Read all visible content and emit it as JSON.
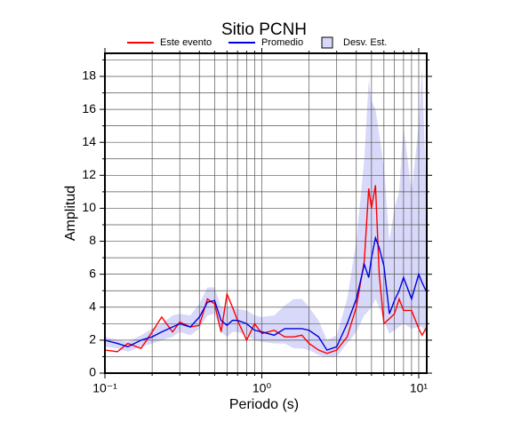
{
  "chart_data": {
    "type": "line",
    "title": "Sitio PCNH",
    "xlabel": "Periodo (s)",
    "ylabel": "Amplitud",
    "xscale": "log",
    "grid": true,
    "xlim": [
      0.1,
      11.25
    ],
    "ylim": [
      0,
      19.4
    ],
    "xticks": [
      {
        "value": 0.1,
        "label": "10⁻¹"
      },
      {
        "value": 1,
        "label": "10⁰"
      },
      {
        "value": 10,
        "label": "10¹"
      }
    ],
    "xminorticks": [
      0.2,
      0.3,
      0.4,
      0.5,
      0.6,
      0.7,
      0.8,
      0.9,
      2,
      3,
      4,
      5,
      6,
      7,
      8,
      9
    ],
    "yticks": [
      0,
      2,
      4,
      6,
      8,
      10,
      12,
      14,
      16,
      18
    ],
    "yminorticks": [
      1,
      3,
      5,
      7,
      9,
      11,
      13,
      15,
      17,
      19
    ],
    "x": [
      0.1,
      0.12,
      0.14,
      0.17,
      0.2,
      0.23,
      0.27,
      0.3,
      0.35,
      0.4,
      0.45,
      0.5,
      0.55,
      0.6,
      0.65,
      0.7,
      0.8,
      0.9,
      1.0,
      1.2,
      1.4,
      1.6,
      1.8,
      2.0,
      2.3,
      2.6,
      3.0,
      3.5,
      4.0,
      4.5,
      4.8,
      5.0,
      5.3,
      5.6,
      6.0,
      6.5,
      7.0,
      7.5,
      8.0,
      9.0,
      10.0,
      10.5,
      11.25
    ],
    "series": [
      {
        "name": "Este evento",
        "color": "#ff0000",
        "values": [
          1.4,
          1.3,
          1.8,
          1.5,
          2.5,
          3.4,
          2.5,
          3.1,
          2.8,
          2.9,
          4.5,
          4.2,
          2.5,
          4.8,
          4.0,
          3.2,
          2.0,
          3.0,
          2.4,
          2.6,
          2.2,
          2.2,
          2.3,
          1.8,
          1.4,
          1.2,
          1.4,
          2.2,
          4.0,
          6.8,
          11.2,
          10.0,
          11.4,
          6.0,
          3.0,
          3.3,
          3.6,
          4.5,
          3.8,
          3.8,
          2.7,
          2.3,
          2.8
        ]
      },
      {
        "name": "Promedio",
        "color": "#0000dd",
        "values": [
          2.0,
          1.8,
          1.6,
          2.0,
          2.2,
          2.5,
          2.8,
          3.0,
          2.8,
          3.4,
          4.3,
          4.4,
          3.2,
          2.9,
          3.2,
          3.2,
          3.0,
          2.6,
          2.5,
          2.3,
          2.7,
          2.7,
          2.7,
          2.6,
          2.2,
          1.4,
          1.6,
          3.0,
          4.5,
          6.6,
          5.8,
          7.0,
          8.2,
          7.6,
          6.5,
          3.6,
          4.4,
          5.0,
          5.8,
          4.5,
          6.0,
          5.5,
          4.9
        ]
      },
      {
        "name": "Desv. Est.",
        "color": "#d8d8fa",
        "band": true,
        "upper": [
          2.2,
          2.0,
          1.9,
          2.3,
          2.7,
          3.0,
          3.5,
          3.6,
          3.5,
          4.2,
          5.2,
          5.2,
          4.0,
          4.0,
          4.0,
          3.9,
          3.8,
          3.5,
          3.4,
          3.5,
          4.1,
          4.5,
          4.5,
          4.0,
          3.2,
          2.0,
          2.3,
          4.5,
          8.0,
          13.0,
          17.8,
          16.5,
          16.0,
          14.5,
          12.5,
          8.0,
          10.0,
          11.0,
          15.0,
          11.0,
          15.0,
          18.5,
          10.0
        ],
        "lower": [
          1.6,
          1.5,
          1.3,
          1.6,
          1.8,
          2.0,
          2.2,
          2.5,
          2.3,
          2.7,
          3.5,
          3.6,
          2.5,
          2.2,
          2.5,
          2.5,
          2.3,
          2.0,
          1.9,
          1.8,
          1.8,
          1.5,
          1.5,
          1.4,
          1.1,
          1.0,
          1.0,
          1.8,
          2.5,
          3.5,
          3.8,
          4.0,
          4.5,
          4.0,
          3.2,
          2.4,
          2.6,
          2.8,
          3.0,
          2.7,
          2.8,
          2.8,
          2.3
        ]
      }
    ]
  }
}
